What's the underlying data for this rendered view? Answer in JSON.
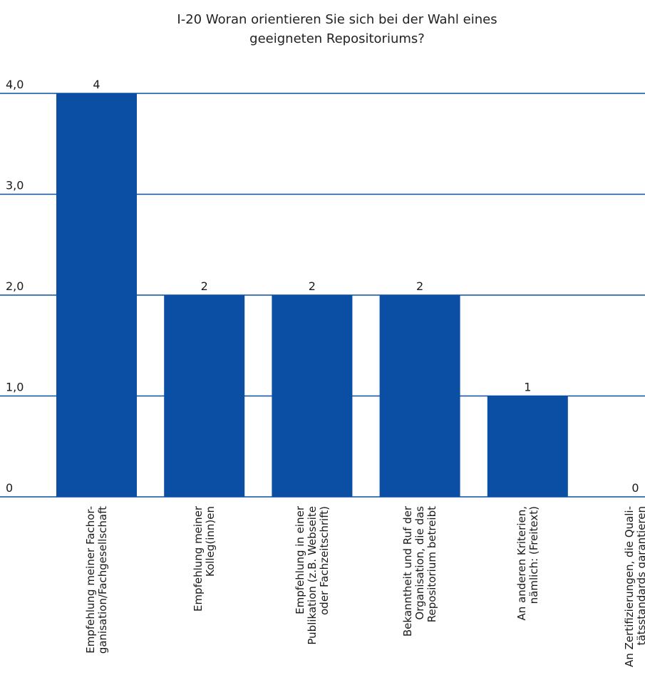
{
  "chart_data": {
    "type": "bar",
    "title_lines": [
      "I-20 Woran orientieren Sie sich bei der Wahl eines",
      "geeigneten Repositoriums?"
    ],
    "categories": [
      [
        "Empfehlung meiner Fachor-",
        "ganisation/Fachgesellschaft"
      ],
      [
        "Empfehlung meiner",
        "Kolleg(inn)en"
      ],
      [
        "Empfehlung in einer",
        "Publikation (z.B. Webseite",
        "oder Fachzeitschrift)"
      ],
      [
        "Bekanntheit und Ruf der",
        "Organisation, die das",
        "Repositorium betreibt"
      ],
      [
        "An anderen Kriterien,",
        "nämlich: (Freitext)"
      ],
      [
        "An Zertifizierungen, die Quali-",
        "tätsstandards garantieren"
      ]
    ],
    "values": [
      4,
      2,
      2,
      2,
      1,
      0
    ],
    "value_labels": [
      "4",
      "2",
      "2",
      "2",
      "1",
      "0"
    ],
    "yticks": [
      0,
      1,
      2,
      3,
      4
    ],
    "ytick_labels": [
      "0",
      "1,0",
      "2,0",
      "3,0",
      "4,0"
    ],
    "ylim": [
      0,
      4
    ],
    "grid": true,
    "colors": {
      "bar": "#0a4fa3",
      "grid": "#0a4fa3"
    }
  }
}
